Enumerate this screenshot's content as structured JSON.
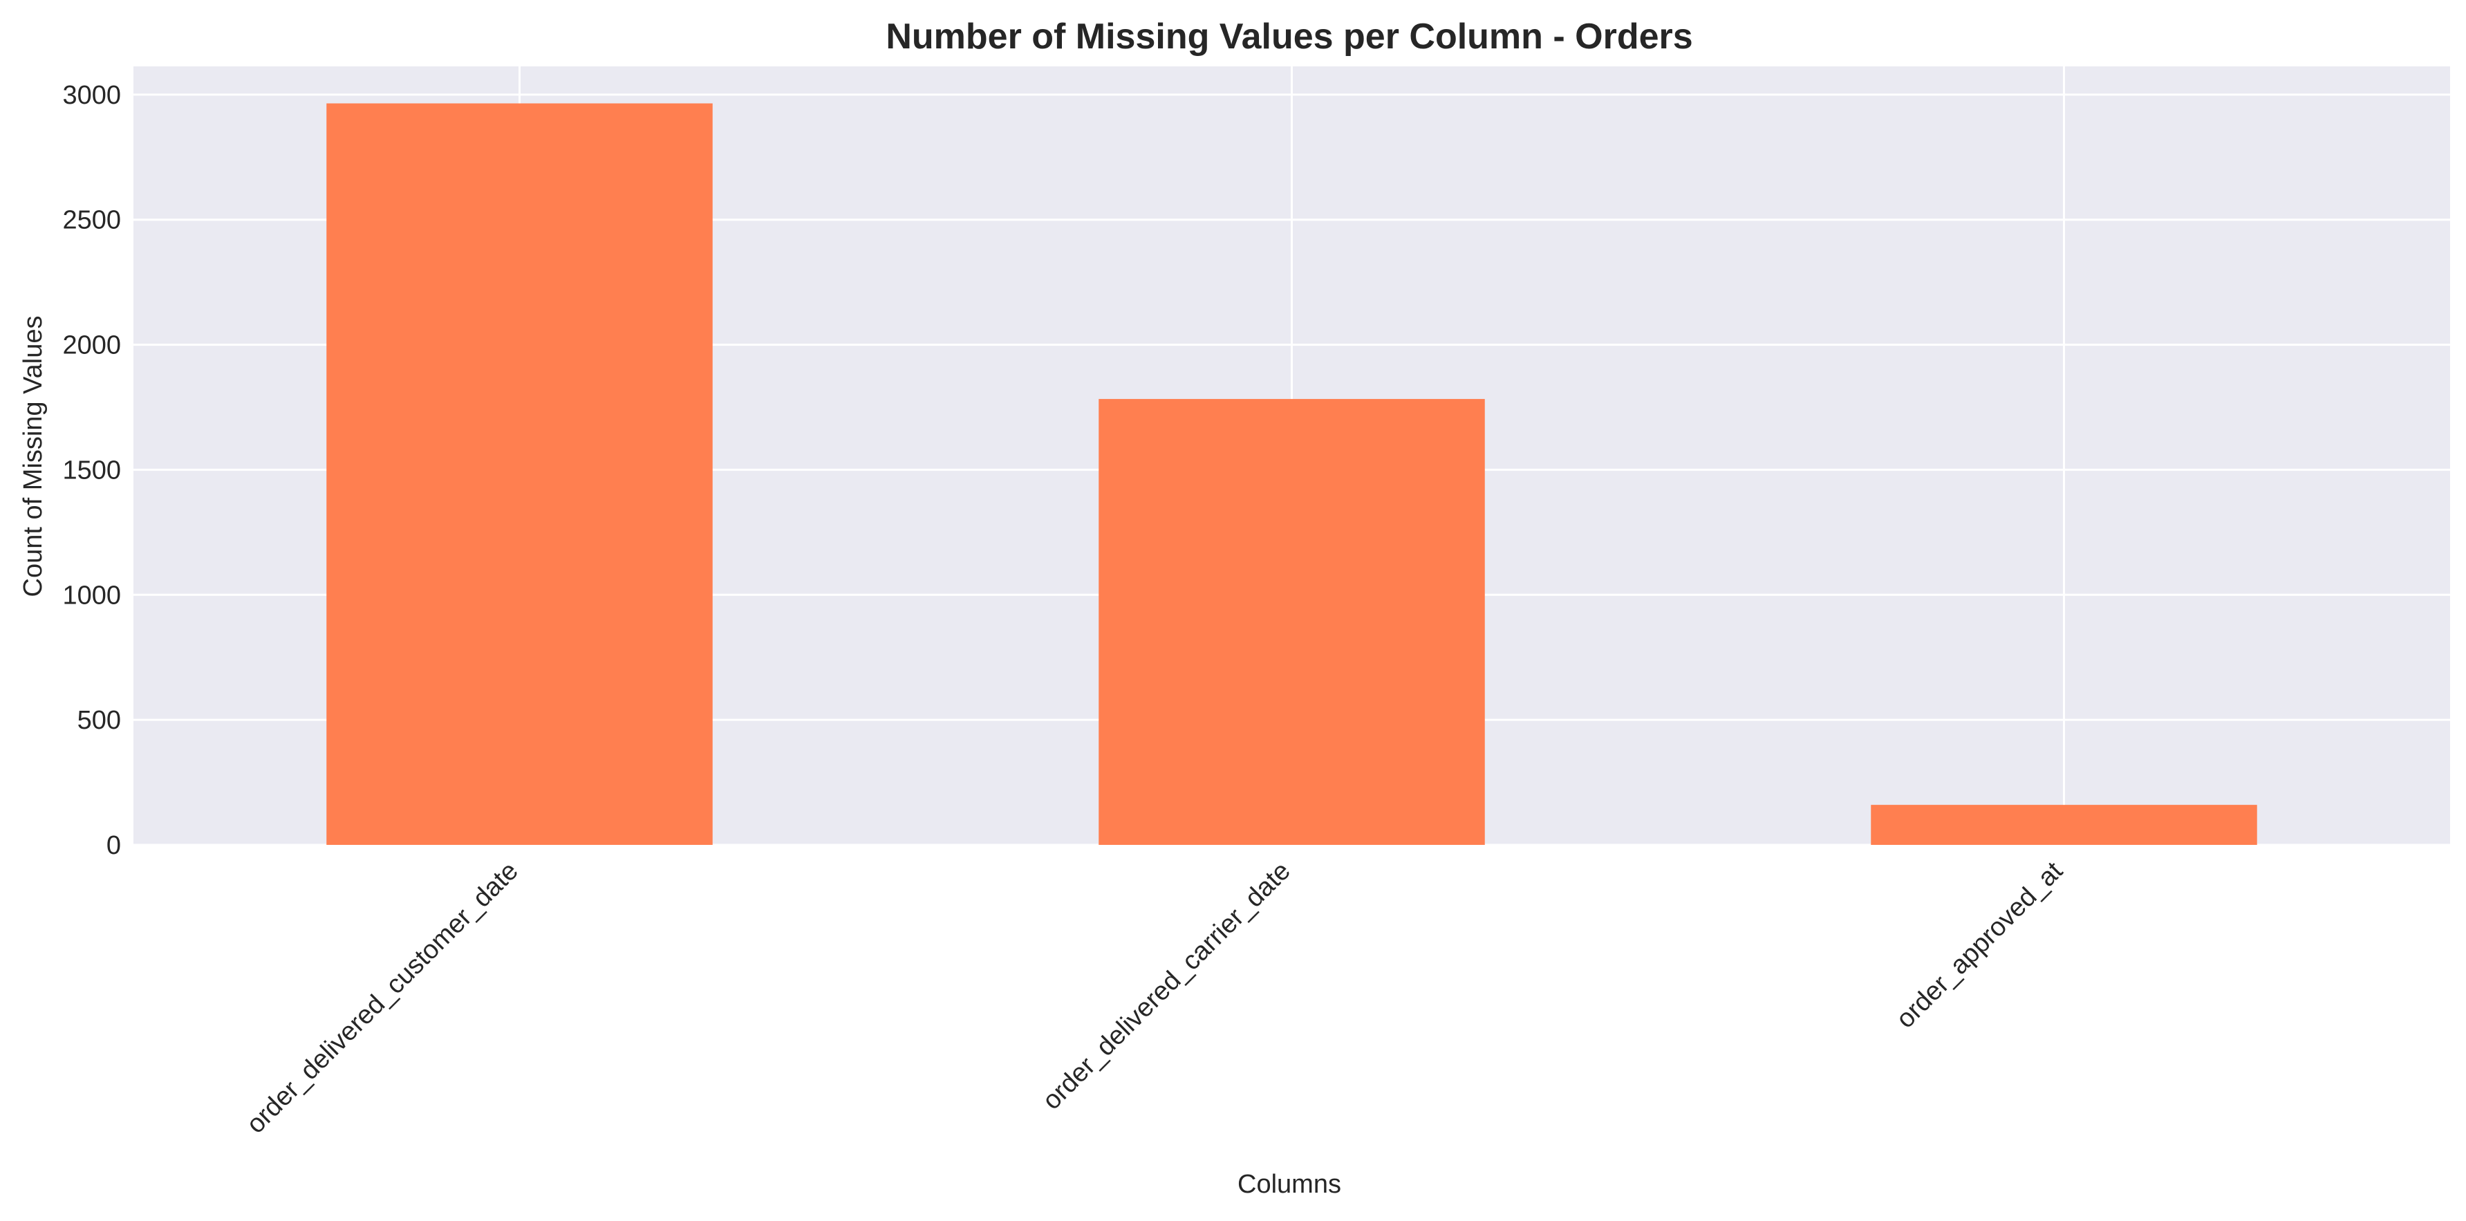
{
  "chart_data": {
    "type": "bar",
    "title": "Number of Missing Values per Column - Orders",
    "xlabel": "Columns",
    "ylabel": "Count of Missing Values",
    "categories": [
      "order_delivered_customer_date",
      "order_delivered_carrier_date",
      "order_approved_at"
    ],
    "values": [
      2965,
      1783,
      160
    ],
    "ylim": [
      0,
      3113
    ],
    "yticks": [
      0,
      500,
      1000,
      1500,
      2000,
      2500,
      3000
    ],
    "grid": true,
    "legend": "none",
    "bar_color": "#ff7f50",
    "background_color": "#eaeaf2",
    "grid_color": "#ffffff"
  }
}
